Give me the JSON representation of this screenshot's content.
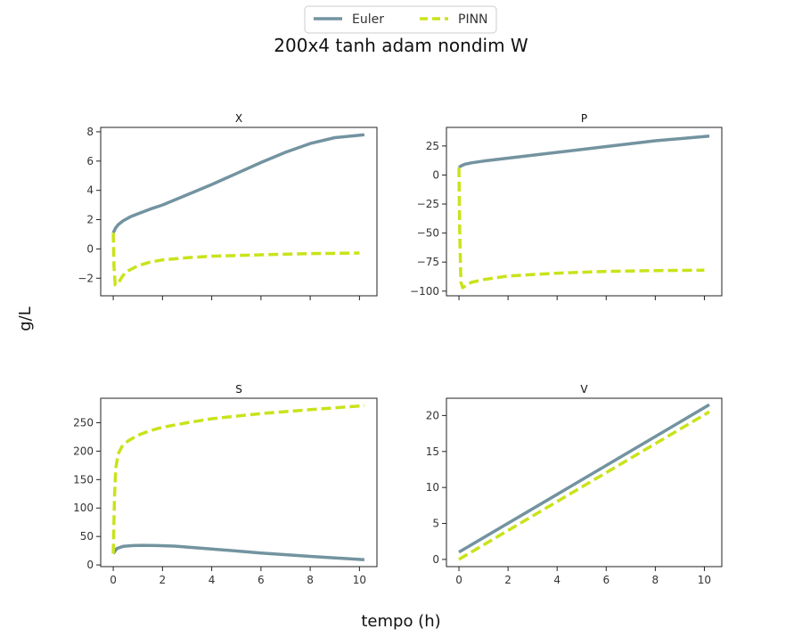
{
  "figure": {
    "suptitle": "200x4 tanh adam nondim W",
    "xlabel": "tempo (h)",
    "ylabel": "g/L"
  },
  "legend": {
    "entries": [
      {
        "label": "Euler",
        "color": "#7393a0",
        "style": "solid"
      },
      {
        "label": "PINN",
        "color": "#c9e31a",
        "style": "dashed"
      }
    ],
    "placement": "top-center"
  },
  "chart_data": [
    {
      "type": "line",
      "title": "X",
      "xlabel": "",
      "ylabel": "",
      "xlim": [
        -0.51,
        10.71
      ],
      "ylim": [
        -3.2,
        8.3
      ],
      "xticks": [
        0,
        2,
        4,
        6,
        8,
        10
      ],
      "yticks": [
        -2,
        0,
        2,
        4,
        6,
        8
      ],
      "show_xtick_labels": false,
      "series": [
        {
          "name": "Euler",
          "color": "#7393a0",
          "dash": false,
          "x": [
            0,
            0.1,
            0.2,
            0.4,
            0.7,
            1.0,
            1.5,
            2.0,
            3.0,
            4.0,
            5.0,
            6.0,
            7.0,
            8.0,
            9.0,
            10.2
          ],
          "y": [
            1.1,
            1.45,
            1.65,
            1.92,
            2.2,
            2.4,
            2.72,
            3.0,
            3.7,
            4.4,
            5.15,
            5.9,
            6.6,
            7.2,
            7.6,
            7.8
          ]
        },
        {
          "name": "PINN",
          "color": "#c9e31a",
          "dash": true,
          "x": [
            0,
            0.03,
            0.08,
            0.15,
            0.25,
            0.4,
            0.6,
            1.0,
            1.5,
            2.0,
            3.0,
            4.0,
            6.0,
            8.0,
            10.0
          ],
          "y": [
            1.1,
            -1.2,
            -2.45,
            -2.4,
            -2.2,
            -1.8,
            -1.5,
            -1.15,
            -0.9,
            -0.75,
            -0.6,
            -0.5,
            -0.4,
            -0.32,
            -0.28
          ]
        }
      ]
    },
    {
      "type": "line",
      "title": "P",
      "xlabel": "",
      "ylabel": "",
      "xlim": [
        -0.51,
        10.71
      ],
      "ylim": [
        -104,
        41
      ],
      "xticks": [
        0,
        2,
        4,
        6,
        8,
        10
      ],
      "yticks": [
        -100,
        -75,
        -50,
        -25,
        0,
        25
      ],
      "show_xtick_labels": false,
      "series": [
        {
          "name": "Euler",
          "color": "#7393a0",
          "dash": false,
          "x": [
            0,
            0.1,
            0.25,
            0.5,
            1.0,
            2.0,
            4.0,
            6.0,
            8.0,
            10.2
          ],
          "y": [
            6.5,
            8.0,
            9.3,
            10.5,
            12.0,
            14.5,
            19.5,
            24.5,
            29.5,
            33.5
          ]
        },
        {
          "name": "PINN",
          "color": "#c9e31a",
          "dash": true,
          "x": [
            0,
            0.03,
            0.08,
            0.15,
            0.3,
            0.5,
            1.0,
            2.0,
            4.0,
            6.0,
            8.0,
            10.0
          ],
          "y": [
            6.5,
            -50,
            -92,
            -97,
            -95,
            -92.5,
            -90,
            -87,
            -84.5,
            -83,
            -82.3,
            -82
          ]
        }
      ]
    },
    {
      "type": "line",
      "title": "S",
      "xlabel": "",
      "ylabel": "",
      "xlim": [
        -0.51,
        10.71
      ],
      "ylim": [
        -3,
        293
      ],
      "xticks": [
        0,
        2,
        4,
        6,
        8,
        10
      ],
      "yticks": [
        0,
        50,
        100,
        150,
        200,
        250
      ],
      "show_xtick_labels": true,
      "series": [
        {
          "name": "Euler",
          "color": "#7393a0",
          "dash": false,
          "x": [
            0,
            0.15,
            0.4,
            0.8,
            1.2,
            1.8,
            2.5,
            4.0,
            6.0,
            8.0,
            10.2
          ],
          "y": [
            20,
            29,
            32.5,
            34,
            34.5,
            34,
            33,
            28,
            21,
            15,
            9
          ]
        },
        {
          "name": "PINN",
          "color": "#c9e31a",
          "dash": true,
          "x": [
            0,
            0.05,
            0.1,
            0.2,
            0.35,
            0.6,
            1.0,
            1.5,
            2.0,
            3.0,
            4.0,
            6.0,
            8.0,
            10.2
          ],
          "y": [
            20,
            120,
            170,
            195,
            208,
            218,
            228,
            236,
            242,
            250,
            257,
            266,
            273,
            280
          ]
        }
      ]
    },
    {
      "type": "line",
      "title": "V",
      "xlabel": "",
      "ylabel": "",
      "xlim": [
        -0.51,
        10.71
      ],
      "ylim": [
        -1.0,
        22.4
      ],
      "xticks": [
        0,
        2,
        4,
        6,
        8,
        10
      ],
      "yticks": [
        0,
        5,
        10,
        15,
        20
      ],
      "show_xtick_labels": true,
      "series": [
        {
          "name": "Euler",
          "color": "#7393a0",
          "dash": false,
          "x": [
            0,
            10.2
          ],
          "y": [
            1.0,
            21.5
          ]
        },
        {
          "name": "PINN",
          "color": "#c9e31a",
          "dash": true,
          "x": [
            0,
            10.2
          ],
          "y": [
            0.0,
            20.5
          ]
        }
      ]
    }
  ]
}
